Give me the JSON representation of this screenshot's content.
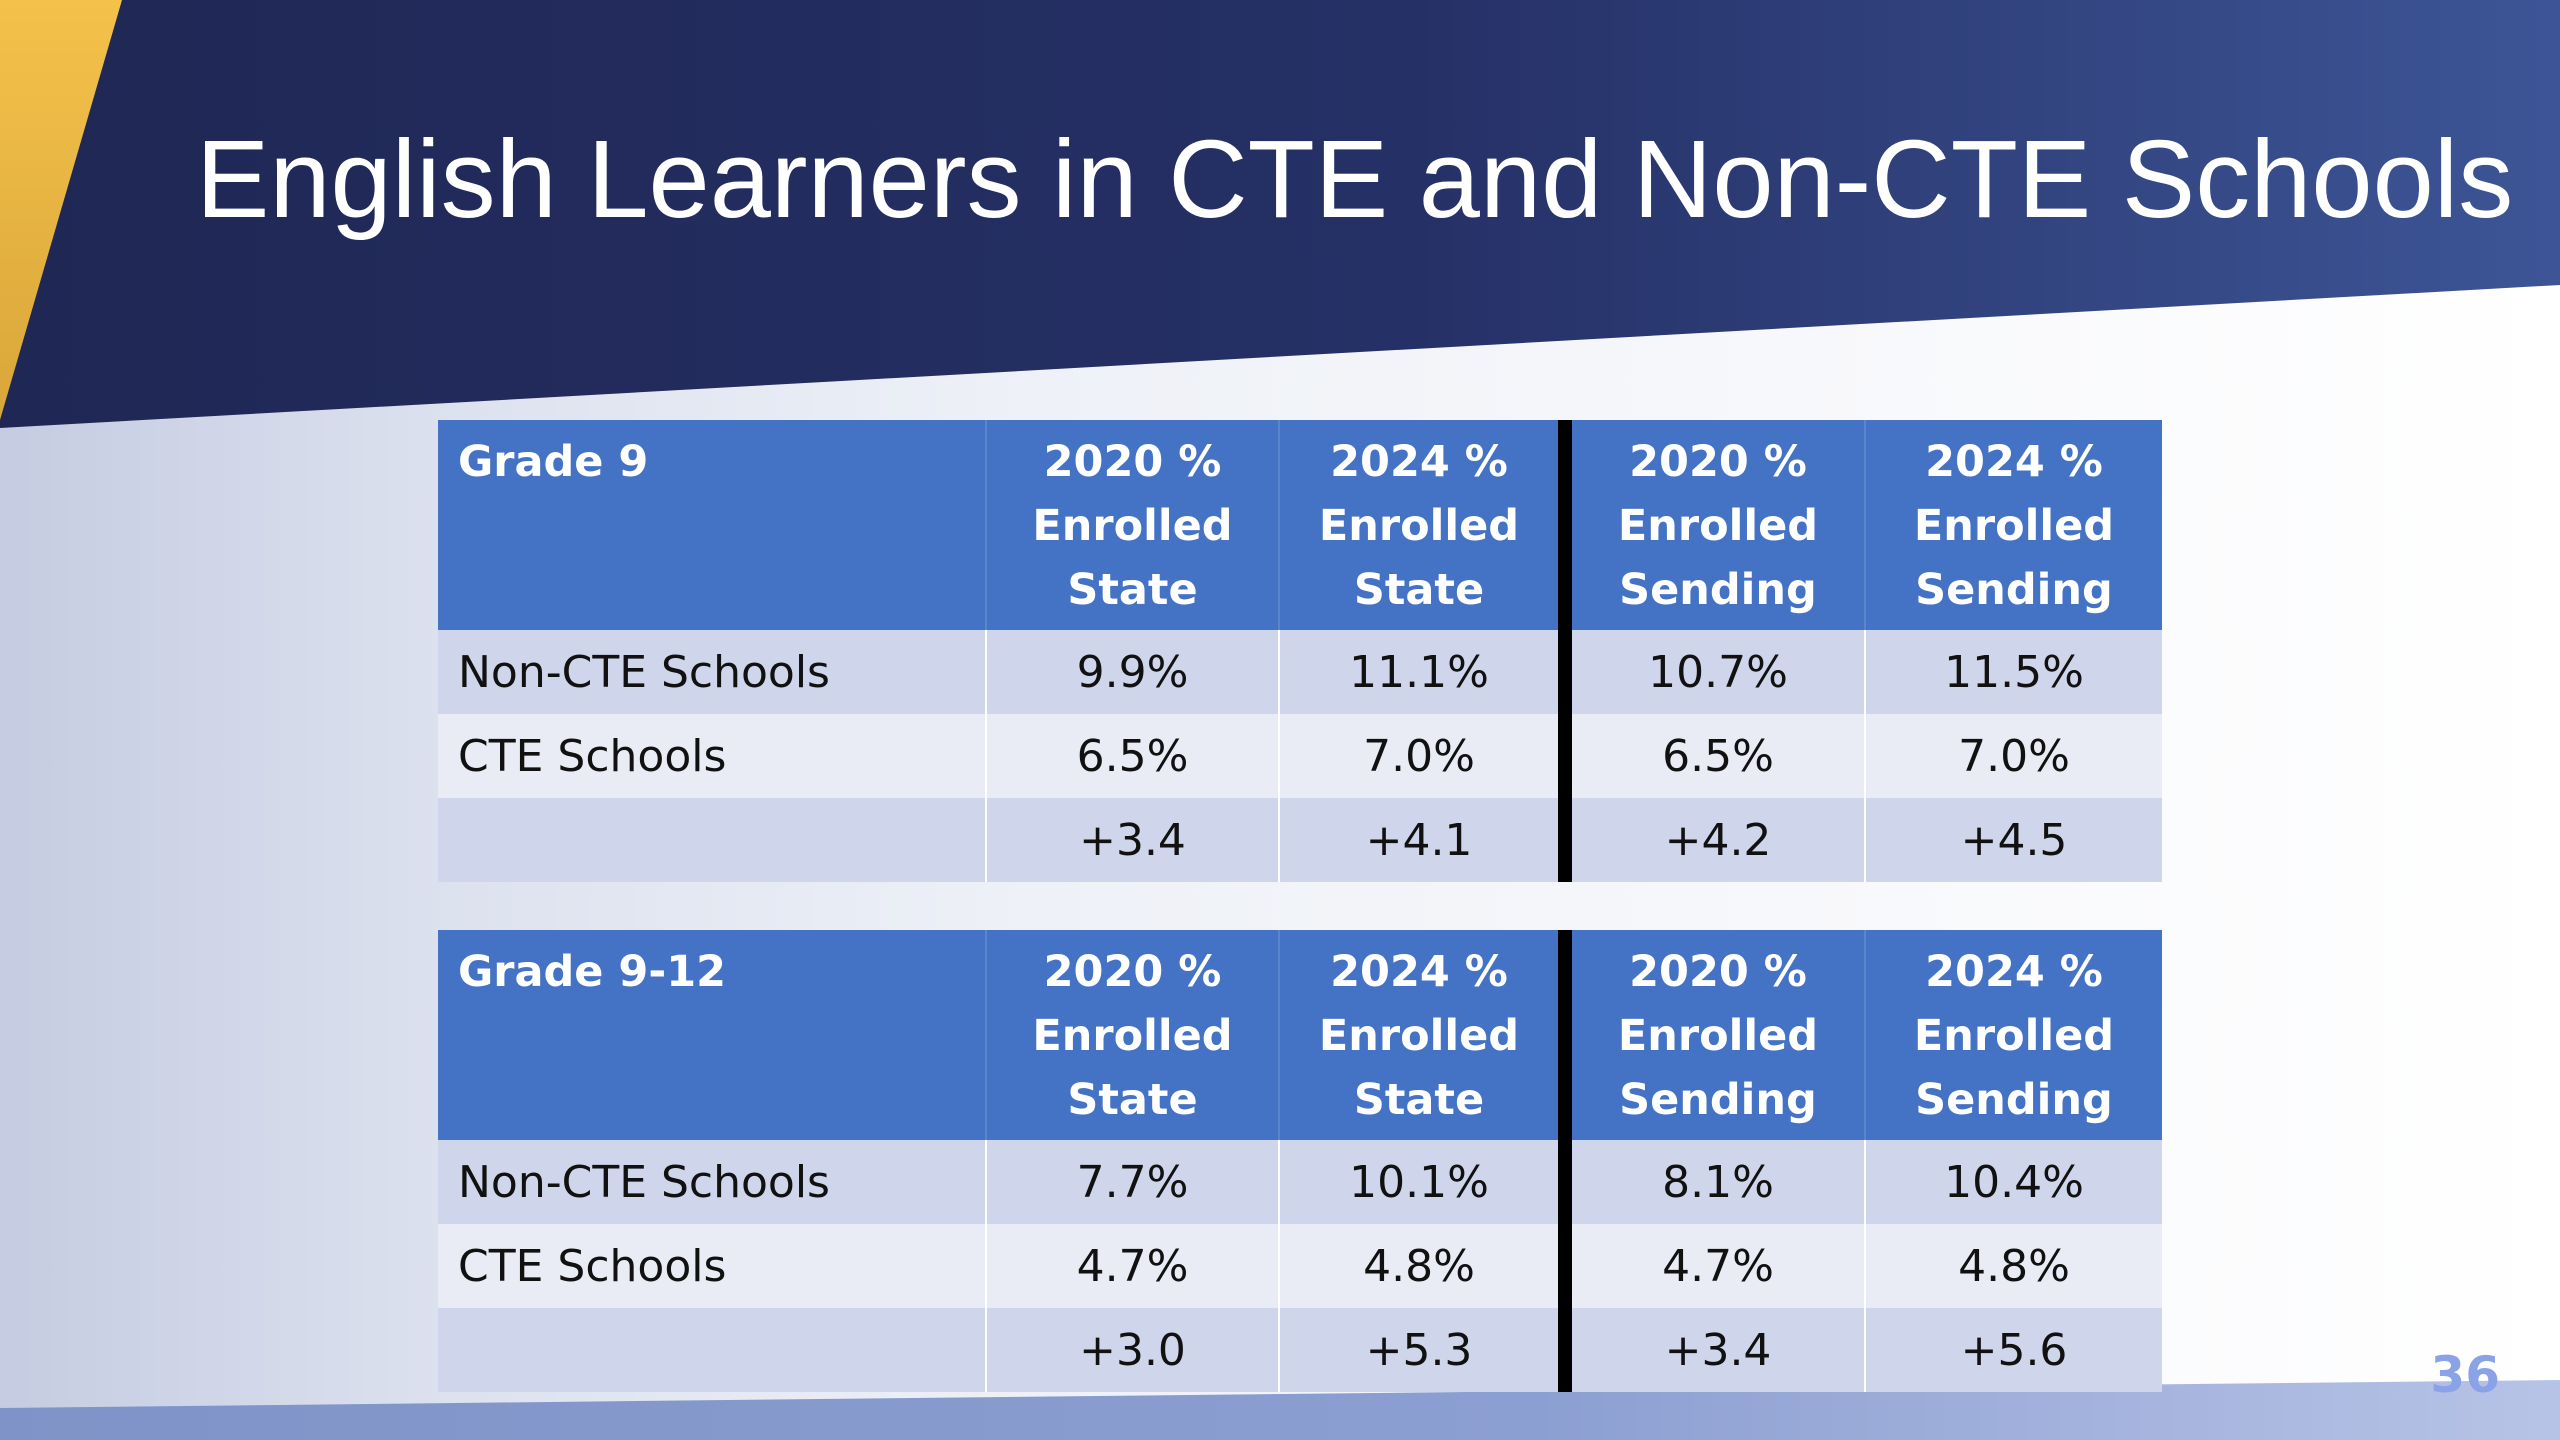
{
  "slide": {
    "title": "English Learners in CTE and Non-CTE Schools",
    "page_number": "36"
  },
  "colors": {
    "header_blue": "#4472c4",
    "band_dark": "#cfd5ea",
    "band_light": "#e9ebf5",
    "title_band": "#1f2a5c",
    "accent_gold": "#f2c14e",
    "page_number": "#8aa2e8"
  },
  "tables": [
    {
      "header": {
        "label": "Grade 9",
        "columns": [
          [
            "2020 %",
            "Enrolled",
            "State"
          ],
          [
            "2024 %",
            "Enrolled",
            "State"
          ],
          [
            "2020 %",
            "Enrolled",
            "Sending"
          ],
          [
            "2024 %",
            "Enrolled",
            "Sending"
          ]
        ]
      },
      "rows": [
        {
          "label": "Non-CTE Schools",
          "values": [
            "9.9%",
            "11.1%",
            "10.7%",
            "11.5%"
          ]
        },
        {
          "label": "CTE Schools",
          "values": [
            "6.5%",
            "7.0%",
            "6.5%",
            "7.0%"
          ]
        },
        {
          "label": "",
          "values": [
            "+3.4",
            "+4.1",
            "+4.2",
            "+4.5"
          ]
        }
      ]
    },
    {
      "header": {
        "label": "Grade 9-12",
        "columns": [
          [
            "2020 %",
            "Enrolled",
            "State"
          ],
          [
            "2024 %",
            "Enrolled",
            "State"
          ],
          [
            "2020 %",
            "Enrolled",
            "Sending"
          ],
          [
            "2024 %",
            "Enrolled",
            "Sending"
          ]
        ]
      },
      "rows": [
        {
          "label": "Non-CTE Schools",
          "values": [
            "7.7%",
            "10.1%",
            "8.1%",
            "10.4%"
          ]
        },
        {
          "label": "CTE Schools",
          "values": [
            "4.7%",
            "4.8%",
            "4.7%",
            "4.8%"
          ]
        },
        {
          "label": "",
          "values": [
            "+3.0",
            "+5.3",
            "+3.4",
            "+5.6"
          ]
        }
      ]
    }
  ]
}
